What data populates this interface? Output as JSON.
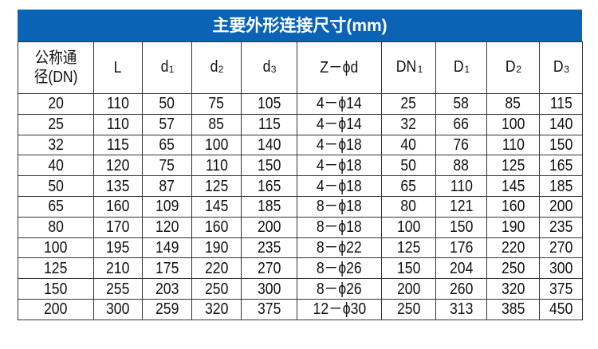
{
  "title": "主要外形连接尺寸(mm)",
  "columns": [
    {
      "main": "公称通径(DN)",
      "sub": ""
    },
    {
      "main": "L",
      "sub": ""
    },
    {
      "main": "d",
      "sub": "1"
    },
    {
      "main": "d",
      "sub": "2"
    },
    {
      "main": "d",
      "sub": "3"
    },
    {
      "main": "Z－ϕd",
      "sub": ""
    },
    {
      "main": "DN",
      "sub": "1"
    },
    {
      "main": "D",
      "sub": "1"
    },
    {
      "main": "D",
      "sub": "2"
    },
    {
      "main": "D",
      "sub": "3"
    }
  ],
  "header_line1": "公称通",
  "header_line2": "径(DN)",
  "rows": [
    [
      "20",
      "110",
      "50",
      "75",
      "105",
      "4－ϕ14",
      "25",
      "58",
      "85",
      "115"
    ],
    [
      "25",
      "110",
      "57",
      "85",
      "115",
      "4－ϕ14",
      "32",
      "66",
      "100",
      "140"
    ],
    [
      "32",
      "115",
      "65",
      "100",
      "140",
      "4－ϕ18",
      "40",
      "76",
      "110",
      "150"
    ],
    [
      "40",
      "120",
      "75",
      "110",
      "150",
      "4－ϕ18",
      "50",
      "88",
      "125",
      "165"
    ],
    [
      "50",
      "135",
      "87",
      "125",
      "165",
      "4－ϕ18",
      "65",
      "110",
      "145",
      "185"
    ],
    [
      "65",
      "160",
      "109",
      "145",
      "185",
      "8－ϕ18",
      "80",
      "121",
      "160",
      "200"
    ],
    [
      "80",
      "170",
      "120",
      "160",
      "200",
      "8－ϕ18",
      "100",
      "150",
      "190",
      "235"
    ],
    [
      "100",
      "195",
      "149",
      "190",
      "235",
      "8－ϕ22",
      "125",
      "176",
      "220",
      "270"
    ],
    [
      "125",
      "210",
      "175",
      "220",
      "270",
      "8－ϕ26",
      "150",
      "204",
      "250",
      "300"
    ],
    [
      "150",
      "255",
      "203",
      "250",
      "300",
      "8－ϕ26",
      "200",
      "260",
      "320",
      "375"
    ],
    [
      "200",
      "300",
      "259",
      "320",
      "375",
      "12－ϕ30",
      "250",
      "313",
      "385",
      "450"
    ]
  ],
  "colors": {
    "title_bar": "#0b63b6",
    "border": "#333333"
  }
}
